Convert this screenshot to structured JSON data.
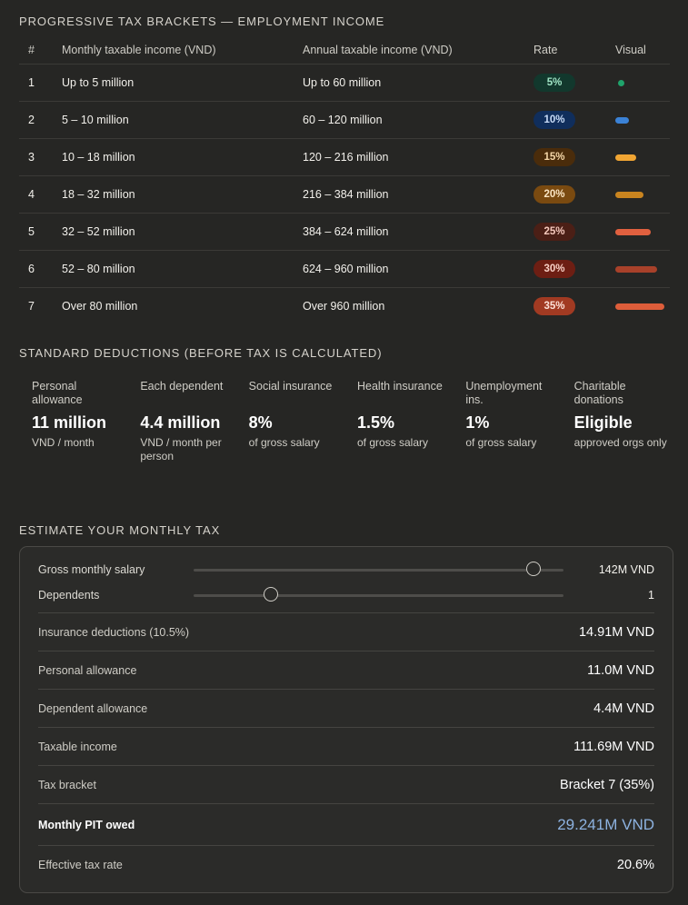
{
  "brackets": {
    "title": "PROGRESSIVE TAX BRACKETS — EMPLOYMENT INCOME",
    "headers": {
      "num": "#",
      "monthly": "Monthly taxable income (VND)",
      "annual": "Annual taxable income (VND)",
      "rate": "Rate",
      "visual": "Visual"
    },
    "rows": [
      {
        "num": "1",
        "monthly": "Up to 5 million",
        "annual": "Up to 60 million",
        "rate": "5%",
        "pill_bg": "#12382d",
        "pill_fg": "#9fe3c4",
        "bar_color": "#1fa36b",
        "rate_value": 5
      },
      {
        "num": "2",
        "monthly": "5 – 10 million",
        "annual": "60 – 120 million",
        "rate": "10%",
        "pill_bg": "#102e5c",
        "pill_fg": "#c9dcf7",
        "bar_color": "#3b82d6",
        "rate_value": 10
      },
      {
        "num": "3",
        "monthly": "10 – 18 million",
        "annual": "120 – 216 million",
        "rate": "15%",
        "pill_bg": "#4a2c0b",
        "pill_fg": "#f5d7a8",
        "bar_color": "#f0a533",
        "rate_value": 15
      },
      {
        "num": "4",
        "monthly": "18 – 32 million",
        "annual": "216 – 384 million",
        "rate": "20%",
        "pill_bg": "#7a4a10",
        "pill_fg": "#fbe6c4",
        "bar_color": "#c9841f",
        "rate_value": 20
      },
      {
        "num": "5",
        "monthly": "32 – 52 million",
        "annual": "384 – 624 million",
        "rate": "25%",
        "pill_bg": "#4b1f16",
        "pill_fg": "#f6c9bd",
        "bar_color": "#e0603f",
        "rate_value": 25
      },
      {
        "num": "6",
        "monthly": "52 – 80 million",
        "annual": "624 – 960 million",
        "rate": "30%",
        "pill_bg": "#6d1e13",
        "pill_fg": "#f8d0c5",
        "bar_color": "#a8412a",
        "rate_value": 30
      },
      {
        "num": "7",
        "monthly": "Over 80 million",
        "annual": "Over 960 million",
        "rate": "35%",
        "pill_bg": "#a13a22",
        "pill_fg": "#fde2d8",
        "bar_color": "#dd5d3a",
        "rate_value": 35
      }
    ]
  },
  "deductions": {
    "title": "STANDARD DEDUCTIONS (BEFORE TAX IS CALCULATED)",
    "items": [
      {
        "label": "Personal allowance",
        "value": "11 million",
        "sub": "VND / month"
      },
      {
        "label": "Each dependent",
        "value": "4.4 million",
        "sub": "VND / month per person"
      },
      {
        "label": "Social insurance",
        "value": "8%",
        "sub": "of gross salary"
      },
      {
        "label": "Health insurance",
        "value": "1.5%",
        "sub": "of gross salary"
      },
      {
        "label": "Unemployment ins.",
        "value": "1%",
        "sub": "of gross salary"
      },
      {
        "label": "Charitable donations",
        "value": "Eligible",
        "sub": "approved orgs only"
      }
    ]
  },
  "estimator": {
    "title": "ESTIMATE YOUR MONTHLY TAX",
    "salary": {
      "label": "Gross monthly salary",
      "value": "142M VND",
      "fraction": 0.92
    },
    "dependents": {
      "label": "Dependents",
      "value": "1",
      "fraction": 0.21
    },
    "rows": [
      {
        "label": "Insurance deductions (10.5%)",
        "value": "14.91M VND"
      },
      {
        "label": "Personal allowance",
        "value": "11.0M VND"
      },
      {
        "label": "Dependent allowance",
        "value": "4.4M VND"
      },
      {
        "label": "Taxable income",
        "value": "111.69M VND"
      },
      {
        "label": "Tax bracket",
        "value": "Bracket 7 (35%)"
      },
      {
        "label": "Monthly PIT owed",
        "value": "29.241M VND"
      },
      {
        "label": "Effective tax rate",
        "value": "20.6%"
      }
    ],
    "accent_color": "#8db2e0"
  }
}
